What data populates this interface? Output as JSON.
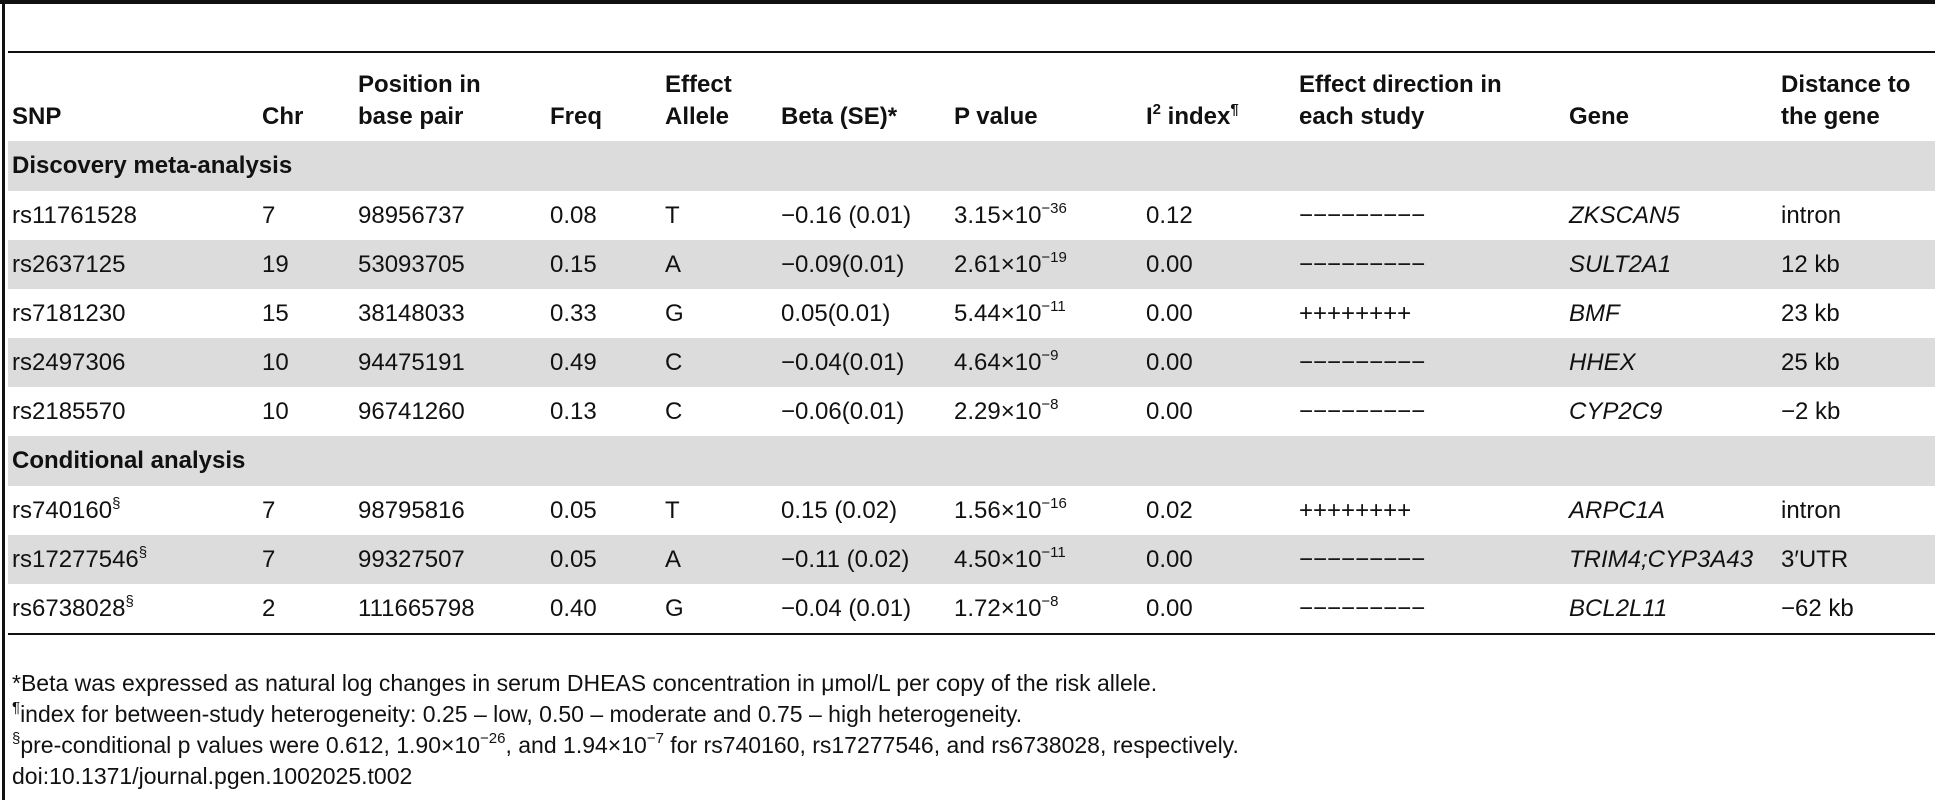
{
  "table": {
    "headers": {
      "snp": "SNP",
      "chr": "Chr",
      "position": "Position in\nbase pair",
      "freq": "Freq",
      "allele": "Effect\nAllele",
      "beta": "Beta (SE)*",
      "p": "P value",
      "i2_main": "I",
      "i2_sup": "2",
      "i2_rest": " index",
      "i2_mark": "¶",
      "direction": "Effect direction in\neach study",
      "gene": "Gene",
      "distance": "Distance to\nthe gene"
    },
    "sections": [
      {
        "title": "Discovery meta-analysis",
        "rows": [
          {
            "snp": "rs11761528",
            "snp_mark": "",
            "chr": "7",
            "pos": "98956737",
            "freq": "0.08",
            "allele": "T",
            "beta": "−0.16 (0.01)",
            "p_base": "3.15×10",
            "p_exp": "−36",
            "i2": "0.12",
            "dir": "−−−−−−−−−",
            "gene": "ZKSCAN5",
            "dist": "intron"
          },
          {
            "snp": "rs2637125",
            "snp_mark": "",
            "chr": "19",
            "pos": "53093705",
            "freq": "0.15",
            "allele": "A",
            "beta": "−0.09(0.01)",
            "p_base": "2.61×10",
            "p_exp": "−19",
            "i2": "0.00",
            "dir": "−−−−−−−−−",
            "gene": "SULT2A1",
            "dist": "12 kb"
          },
          {
            "snp": "rs7181230",
            "snp_mark": "",
            "chr": "15",
            "pos": "38148033",
            "freq": "0.33",
            "allele": "G",
            "beta": "0.05(0.01)",
            "p_base": "5.44×10",
            "p_exp": "−11",
            "i2": "0.00",
            "dir": "++++++++",
            "gene": "BMF",
            "dist": "23 kb"
          },
          {
            "snp": "rs2497306",
            "snp_mark": "",
            "chr": "10",
            "pos": "94475191",
            "freq": "0.49",
            "allele": "C",
            "beta": "−0.04(0.01)",
            "p_base": "4.64×10",
            "p_exp": "−9",
            "i2": "0.00",
            "dir": "−−−−−−−−−",
            "gene": "HHEX",
            "dist": "25 kb"
          },
          {
            "snp": "rs2185570",
            "snp_mark": "",
            "chr": "10",
            "pos": "96741260",
            "freq": "0.13",
            "allele": "C",
            "beta": "−0.06(0.01)",
            "p_base": "2.29×10",
            "p_exp": "−8",
            "i2": "0.00",
            "dir": "−−−−−−−−−",
            "gene": "CYP2C9",
            "dist": "−2 kb"
          }
        ]
      },
      {
        "title": "Conditional analysis",
        "rows": [
          {
            "snp": "rs740160",
            "snp_mark": "§",
            "chr": "7",
            "pos": "98795816",
            "freq": "0.05",
            "allele": "T",
            "beta": "0.15 (0.02)",
            "p_base": "1.56×10",
            "p_exp": "−16",
            "i2": "0.02",
            "dir": "++++++++",
            "gene": "ARPC1A",
            "dist": "intron"
          },
          {
            "snp": "rs17277546",
            "snp_mark": "§",
            "chr": "7",
            "pos": "99327507",
            "freq": "0.05",
            "allele": "A",
            "beta": "−0.11 (0.02)",
            "p_base": "4.50×10",
            "p_exp": "−11",
            "i2": "0.00",
            "dir": "−−−−−−−−−",
            "gene": "TRIM4;CYP3A43",
            "dist": "3′UTR"
          },
          {
            "snp": "rs6738028",
            "snp_mark": "§",
            "chr": "2",
            "pos": "111665798",
            "freq": "0.40",
            "allele": "G",
            "beta": "−0.04 (0.01)",
            "p_base": "1.72×10",
            "p_exp": "−8",
            "i2": "0.00",
            "dir": "−−−−−−−−−",
            "gene": "BCL2L11",
            "dist": "−62 kb"
          }
        ]
      }
    ]
  },
  "notes": {
    "beta": {
      "mark": "",
      "text": "*Beta was expressed as natural log changes in serum DHEAS concentration in μmol/L per copy of the risk allele."
    },
    "index": {
      "mark": "¶",
      "text": "index for between-study heterogeneity: 0.25 – low, 0.50 – moderate and 0.75 – high heterogeneity."
    },
    "precond": {
      "mark": "§",
      "part1": "pre-conditional p values were 0.612, 1.90×10",
      "exp1": "−26",
      "part2": ", and 1.94×10",
      "exp2": "−7",
      "part3": " for rs740160, rs17277546, and rs6738028, respectively."
    },
    "doi": "doi:10.1371/journal.pgen.1002025.t002"
  }
}
